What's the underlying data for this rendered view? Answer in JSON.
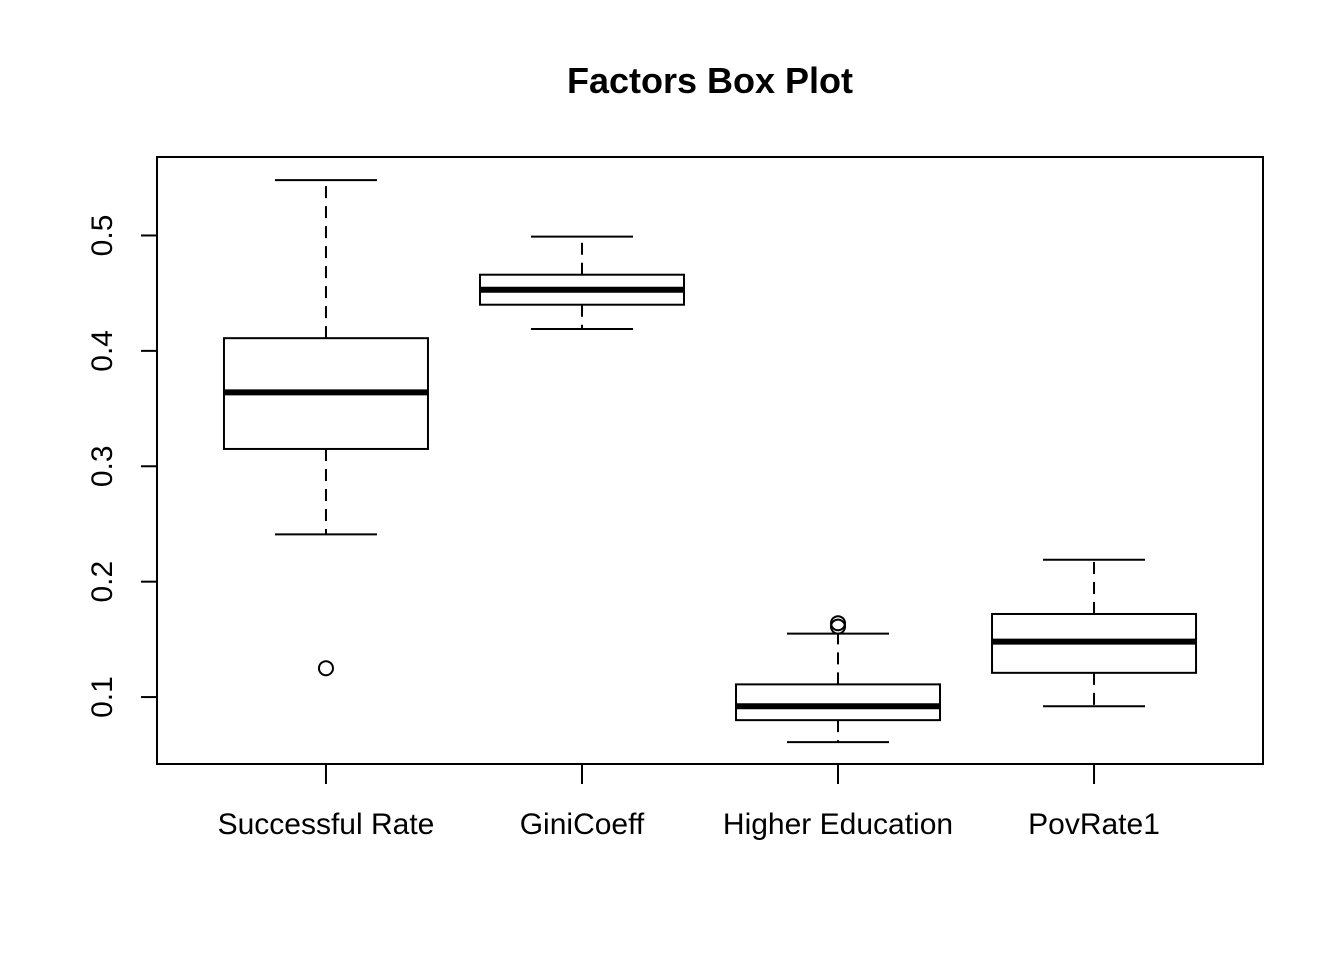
{
  "chart_data": {
    "type": "boxplot",
    "title": "Factors Box Plot",
    "xlabel": "",
    "ylabel": "",
    "ylim": [
      0.042,
      0.568
    ],
    "yticks": [
      0.1,
      0.2,
      0.3,
      0.4,
      0.5
    ],
    "ytick_labels": [
      "0.1",
      "0.2",
      "0.3",
      "0.4",
      "0.5"
    ],
    "grid": false,
    "categories": [
      "Successful Rate",
      "GiniCoeff",
      "Higher Education",
      "PovRate1"
    ],
    "boxes": [
      {
        "label": "Successful Rate",
        "whisker_low": 0.241,
        "q1": 0.315,
        "median": 0.364,
        "q3": 0.411,
        "whisker_high": 0.548,
        "outliers": [
          0.125
        ]
      },
      {
        "label": "GiniCoeff",
        "whisker_low": 0.419,
        "q1": 0.44,
        "median": 0.453,
        "q3": 0.466,
        "whisker_high": 0.499,
        "outliers": []
      },
      {
        "label": "Higher Education",
        "whisker_low": 0.061,
        "q1": 0.08,
        "median": 0.092,
        "q3": 0.111,
        "whisker_high": 0.155,
        "outliers": [
          0.161,
          0.164
        ]
      },
      {
        "label": "PovRate1",
        "whisker_low": 0.092,
        "q1": 0.121,
        "median": 0.148,
        "q3": 0.172,
        "whisker_high": 0.219,
        "outliers": []
      }
    ],
    "colors": {
      "stroke": "#000000",
      "fill": "#ffffff"
    }
  }
}
